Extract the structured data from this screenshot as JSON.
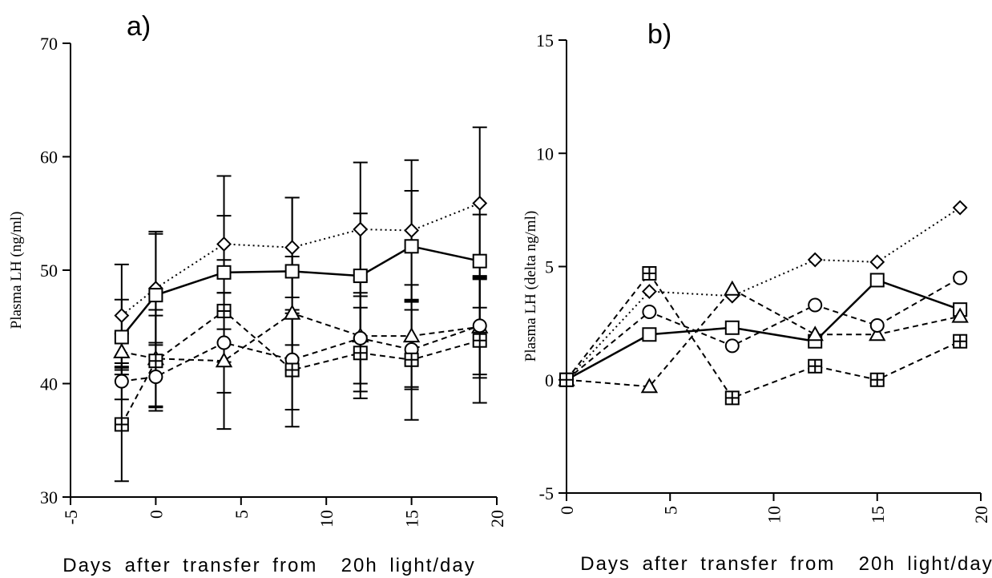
{
  "chart_data": [
    {
      "panel_label": "a)",
      "type": "line",
      "xlabel": "Days after transfer from  20h light/day",
      "ylabel": "Plasma LH (ng/ml)",
      "xlim": [
        -5,
        20
      ],
      "ylim": [
        30,
        70
      ],
      "xticks": [
        "-5",
        "0",
        "5",
        "10",
        "15",
        "20"
      ],
      "yticks": [
        "30",
        "40",
        "50",
        "60",
        "70"
      ],
      "series": [
        {
          "marker": "diamond",
          "line": "dotted",
          "x": [
            -2,
            0,
            4,
            8,
            12,
            15,
            19
          ],
          "y": [
            46.0,
            48.4,
            52.3,
            52.0,
            53.6,
            53.5,
            55.9
          ],
          "err": [
            4.5,
            5.0,
            6.0,
            4.4,
            5.9,
            6.2,
            6.7
          ]
        },
        {
          "marker": "square",
          "line": "solid",
          "x": [
            -2,
            0,
            4,
            8,
            12,
            15,
            19
          ],
          "y": [
            44.1,
            47.8,
            49.8,
            49.9,
            49.5,
            52.1,
            50.8
          ],
          "err": [
            3.3,
            5.4,
            5.0,
            6.5,
            5.5,
            4.9,
            4.1
          ]
        },
        {
          "marker": "triangle",
          "line": "dashed",
          "x": [
            -2,
            0,
            4,
            8,
            12,
            15,
            19
          ],
          "y": [
            42.8,
            42.2,
            42.0,
            46.2,
            44.2,
            44.2,
            45.0
          ],
          "err": [
            1.6,
            4.3,
            6.0,
            5.0,
            4.9,
            4.5,
            4.5
          ]
        },
        {
          "marker": "circle",
          "line": "dashed",
          "x": [
            -2,
            0,
            4,
            8,
            12,
            15,
            19
          ],
          "y": [
            40.2,
            40.6,
            43.6,
            42.1,
            44.0,
            43.0,
            45.1
          ],
          "err": [
            1.6,
            3.0,
            4.4,
            4.4,
            4.0,
            3.5,
            4.3
          ]
        },
        {
          "marker": "square-plus",
          "line": "dashed",
          "x": [
            -2,
            0,
            4,
            8,
            12,
            15,
            19
          ],
          "y": [
            36.4,
            42.0,
            46.4,
            41.2,
            42.7,
            42.1,
            43.8
          ],
          "err": [
            5.0,
            4.0,
            4.5,
            5.0,
            4.0,
            5.3,
            5.5
          ]
        }
      ]
    },
    {
      "panel_label": "b)",
      "type": "line",
      "xlabel": "Days after transfer from  20h light/day",
      "ylabel": "Plasma LH (delta ng/ml)",
      "xlim": [
        0,
        20
      ],
      "ylim": [
        -5,
        15
      ],
      "xticks": [
        "0",
        "5",
        "10",
        "15",
        "20"
      ],
      "yticks": [
        "-5",
        "0",
        "5",
        "10",
        "15"
      ],
      "series": [
        {
          "marker": "diamond",
          "line": "dotted",
          "x": [
            0,
            4,
            8,
            12,
            15,
            19
          ],
          "y": [
            0,
            3.9,
            3.7,
            5.3,
            5.2,
            7.6
          ]
        },
        {
          "marker": "square",
          "line": "solid",
          "x": [
            0,
            4,
            8,
            12,
            15,
            19
          ],
          "y": [
            0,
            2.0,
            2.3,
            1.7,
            4.4,
            3.1
          ]
        },
        {
          "marker": "triangle",
          "line": "dashed",
          "x": [
            0,
            4,
            8,
            12,
            15,
            19
          ],
          "y": [
            0,
            -0.3,
            4.0,
            2.0,
            2.0,
            2.8
          ]
        },
        {
          "marker": "circle",
          "line": "dashed",
          "x": [
            0,
            4,
            8,
            12,
            15,
            19
          ],
          "y": [
            0,
            3.0,
            1.5,
            3.3,
            2.4,
            4.5
          ]
        },
        {
          "marker": "square-plus",
          "line": "dashed",
          "x": [
            0,
            4,
            8,
            12,
            15,
            19
          ],
          "y": [
            0,
            4.7,
            -0.8,
            0.6,
            0.0,
            1.7
          ]
        }
      ]
    }
  ]
}
